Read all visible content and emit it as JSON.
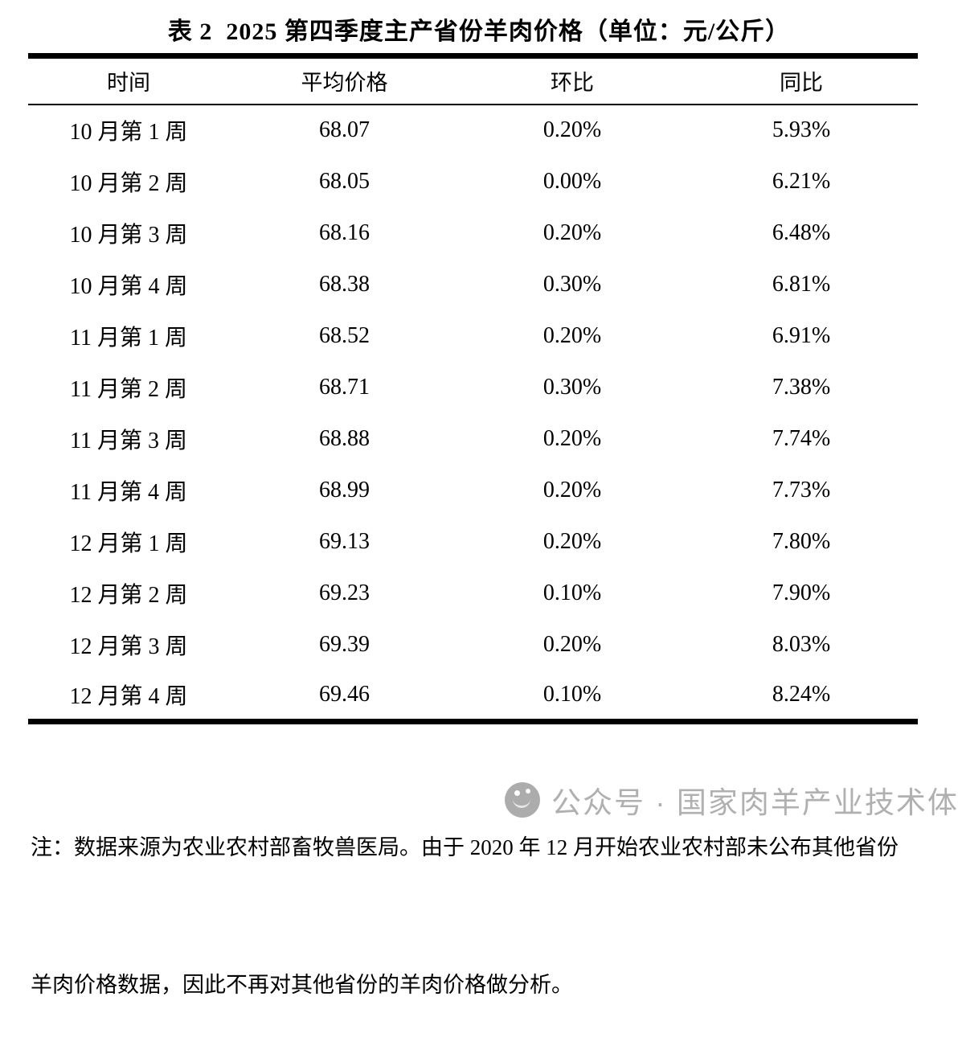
{
  "title": "表 2  2025 第四季度主产省份羊肉价格（单位：元/公斤）",
  "table": {
    "columns": [
      "时间",
      "平均价格",
      "环比",
      "同比"
    ],
    "rows": [
      [
        "10 月第 1 周",
        "68.07",
        "0.20%",
        "5.93%"
      ],
      [
        "10 月第 2 周",
        "68.05",
        "0.00%",
        "6.21%"
      ],
      [
        "10 月第 3 周",
        "68.16",
        "0.20%",
        "6.48%"
      ],
      [
        "10 月第 4 周",
        "68.38",
        "0.30%",
        "6.81%"
      ],
      [
        "11 月第 1 周",
        "68.52",
        "0.20%",
        "6.91%"
      ],
      [
        "11 月第 2 周",
        "68.71",
        "0.30%",
        "7.38%"
      ],
      [
        "11 月第 3 周",
        "68.88",
        "0.20%",
        "7.74%"
      ],
      [
        "11 月第 4 周",
        "68.99",
        "0.20%",
        "7.73%"
      ],
      [
        "12 月第 1 周",
        "69.13",
        "0.20%",
        "7.80%"
      ],
      [
        "12 月第 2 周",
        "69.23",
        "0.10%",
        "7.90%"
      ],
      [
        "12 月第 3 周",
        "69.39",
        "0.20%",
        "8.03%"
      ],
      [
        "12 月第 4 周",
        "69.46",
        "0.10%",
        "8.24%"
      ]
    ]
  },
  "note": {
    "line1": "注：数据来源为农业农村部畜牧兽医局。由于 2020 年 12 月开始农业农村部未公布其他省份",
    "line2": "羊肉价格数据，因此不再对其他省份的羊肉价格做分析。"
  },
  "watermark": {
    "icon": "wechat-official-account-icon",
    "text": "公众号 · 国家肉羊产业技术体系",
    "color": "#b0b0b0"
  },
  "colors": {
    "background": "#ffffff",
    "text": "#000000",
    "rule": "#000000",
    "watermark_gray": "#b0b0b0"
  }
}
